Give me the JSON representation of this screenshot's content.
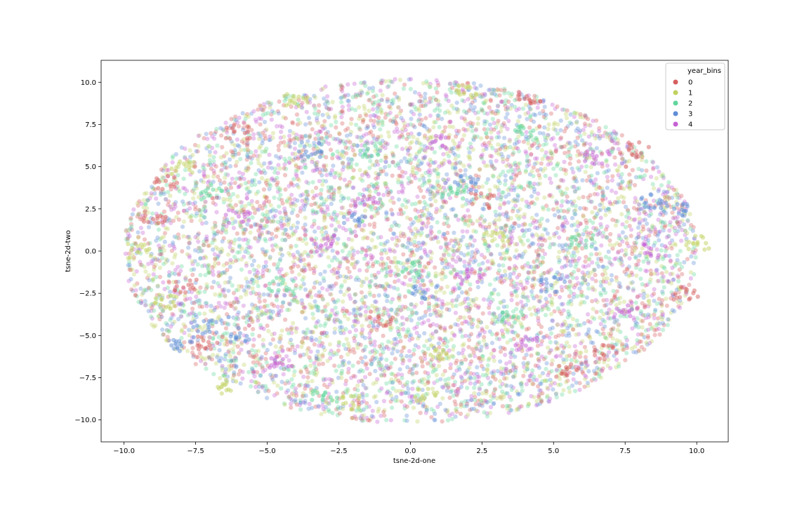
{
  "chart_data": {
    "type": "scatter",
    "title": "",
    "xlabel": "tsne-2d-one",
    "ylabel": "tsne-2d-two",
    "xlim": [
      -10.8,
      11.1
    ],
    "ylim": [
      -11.3,
      11.3
    ],
    "xticks": [
      -10.0,
      -7.5,
      -5.0,
      -2.5,
      0.0,
      2.5,
      5.0,
      7.5,
      10.0
    ],
    "yticks": [
      -10.0,
      -7.5,
      -5.0,
      -2.5,
      0.0,
      2.5,
      5.0,
      7.5,
      10.0
    ],
    "xtick_labels": [
      "−10.0",
      "−7.5",
      "−5.0",
      "−2.5",
      "0.0",
      "2.5",
      "5.0",
      "7.5",
      "10.0"
    ],
    "ytick_labels": [
      "−10.0",
      "−7.5",
      "−5.0",
      "−2.5",
      "0.0",
      "2.5",
      "5.0",
      "7.5",
      "10.0"
    ],
    "grid": false,
    "legend": {
      "title": "year_bins",
      "placement": "top-right",
      "entries": [
        "0",
        "1",
        "2",
        "3",
        "4"
      ]
    },
    "point_alpha": 0.35,
    "point_cloud": {
      "shape": "ellipse",
      "center": [
        0.0,
        0.0
      ],
      "x_radius": 10.0,
      "y_radius": 10.2
    },
    "series": [
      {
        "name": "0",
        "color": "#d65f5f",
        "representative_points": [
          [
            -9.0,
            2.0
          ],
          [
            -8.5,
            4.0
          ],
          [
            -7.8,
            -2.0
          ],
          [
            -6.0,
            7.0
          ],
          [
            4.2,
            9.0
          ],
          [
            6.8,
            -6.0
          ],
          [
            5.5,
            -7.0
          ],
          [
            -7.0,
            -5.5
          ],
          [
            9.6,
            -2.5
          ],
          [
            8.0,
            6.0
          ],
          [
            -1.0,
            -4.0
          ],
          [
            2.5,
            3.0
          ]
        ]
      },
      {
        "name": "1",
        "color": "#c1d160",
        "representative_points": [
          [
            -9.5,
            0.0
          ],
          [
            -8.5,
            -3.0
          ],
          [
            -6.5,
            -8.0
          ],
          [
            -2.0,
            -9.0
          ],
          [
            0.5,
            -8.5
          ],
          [
            -4.0,
            9.0
          ],
          [
            2.0,
            9.5
          ],
          [
            10.0,
            0.5
          ],
          [
            -8.0,
            5.0
          ],
          [
            1.0,
            -6.0
          ],
          [
            3.0,
            1.0
          ]
        ]
      },
      {
        "name": "2",
        "color": "#60d69c",
        "representative_points": [
          [
            -7.0,
            3.5
          ],
          [
            -1.5,
            6.0
          ],
          [
            0.0,
            -1.0
          ],
          [
            3.5,
            -4.0
          ],
          [
            -4.5,
            -2.0
          ],
          [
            6.0,
            0.5
          ],
          [
            -3.0,
            -8.5
          ],
          [
            4.0,
            7.0
          ],
          [
            1.5,
            3.5
          ]
        ]
      },
      {
        "name": "3",
        "color": "#5f8dd6",
        "representative_points": [
          [
            -7.2,
            -4.5
          ],
          [
            -6.0,
            -5.0
          ],
          [
            -3.5,
            6.0
          ],
          [
            2.0,
            4.0
          ],
          [
            5.0,
            -2.0
          ],
          [
            -2.0,
            2.0
          ],
          [
            8.5,
            3.0
          ],
          [
            -8.0,
            -5.5
          ],
          [
            0.5,
            -2.5
          ],
          [
            9.3,
            2.5
          ]
        ]
      },
      {
        "name": "4",
        "color": "#c662d4",
        "representative_points": [
          [
            -1.5,
            3.0
          ],
          [
            1.0,
            6.5
          ],
          [
            4.0,
            -5.5
          ],
          [
            7.5,
            -3.5
          ],
          [
            8.5,
            0.0
          ],
          [
            -4.5,
            -6.5
          ],
          [
            2.0,
            -1.5
          ],
          [
            -6.0,
            2.0
          ],
          [
            6.5,
            5.5
          ],
          [
            -3.0,
            0.5
          ]
        ]
      }
    ]
  }
}
